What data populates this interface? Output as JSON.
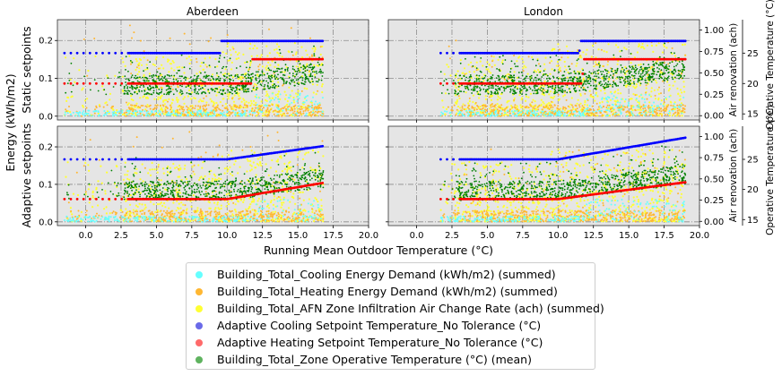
{
  "chart_data": {
    "type": "scatter",
    "panel_titles": [
      "Aberdeen",
      "London"
    ],
    "row_labels": [
      "Static setpoints",
      "Adaptive setpoints"
    ],
    "xlabel": "Running Mean Outdoor Temperature (°C)",
    "ylabel": "Energy (kWh/m2)",
    "right_ylabel_inner": "Air renovation (ach)",
    "right_ylabel_outer": "Operative Temperature (°C)",
    "xlim": [
      -2,
      20
    ],
    "xticks": [
      "0.0",
      "2.5",
      "5.0",
      "7.5",
      "10.0",
      "12.5",
      "15.0",
      "17.5",
      "20.0"
    ],
    "xtick_values": [
      0,
      2.5,
      5,
      7.5,
      10,
      12.5,
      15,
      17.5,
      20
    ],
    "ylim": [
      -0.01,
      0.255
    ],
    "yticks": [
      "0.0",
      "0.1",
      "0.2"
    ],
    "ytick_values": [
      0,
      0.1,
      0.2
    ],
    "ach_lim": [
      -0.05,
      1.12
    ],
    "ach_ticks": [
      "0.00",
      "0.25",
      "0.50",
      "0.75",
      "1.00"
    ],
    "ach_tick_values": [
      0,
      0.25,
      0.5,
      0.75,
      1.0
    ],
    "temp_lim": [
      14,
      30.5
    ],
    "temp_ticks": [
      "15",
      "20",
      "25"
    ],
    "temp_tick_values": [
      15,
      20,
      25
    ],
    "grid": true,
    "legend_position": "bottom",
    "x_range_by_city": {
      "Aberdeen": [
        -1.5,
        16.8
      ],
      "London": [
        1.7,
        19.0
      ]
    },
    "series": [
      {
        "name": "Building_Total_Cooling Energy Demand (kWh/m2) (summed)",
        "color": "#66ffff",
        "axis": "energy",
        "typical_range": [
          0,
          0.04
        ]
      },
      {
        "name": "Building_Total_Heating Energy Demand (kWh/m2) (summed)",
        "color": "#ffb732",
        "axis": "energy",
        "typical_range": [
          0,
          0.24
        ]
      },
      {
        "name": "Building_Total_AFN Zone Infiltration Air Change Rate (ach) (summed)",
        "color": "#ffff33",
        "axis": "ach",
        "typical_range": [
          0,
          0.8
        ]
      },
      {
        "name": "Adaptive Cooling Setpoint Temperature_No Tolerance (°C)",
        "color": "#0000ff",
        "axis": "temp",
        "static": {
          "Aberdeen": [
            [
              -1.5,
              25
            ],
            [
              9.5,
              25
            ],
            [
              9.6,
              27
            ],
            [
              16.8,
              27
            ]
          ],
          "London": [
            [
              1.7,
              25
            ],
            [
              11.5,
              25
            ],
            [
              11.6,
              27
            ],
            [
              19,
              27
            ]
          ]
        },
        "adaptive": {
          "Aberdeen": [
            [
              -1.5,
              25
            ],
            [
              10,
              25
            ],
            [
              16.8,
              27.2
            ]
          ],
          "London": [
            [
              1.7,
              25
            ],
            [
              10,
              25
            ],
            [
              19,
              28.6
            ]
          ]
        }
      },
      {
        "name": "Adaptive Heating Setpoint Temperature_No Tolerance (°C)",
        "color": "#ff0000",
        "axis": "temp",
        "static": {
          "Aberdeen": [
            [
              -1.5,
              20
            ],
            [
              11.7,
              20
            ],
            [
              11.8,
              24
            ],
            [
              16.8,
              24
            ]
          ],
          "London": [
            [
              1.7,
              20
            ],
            [
              11.7,
              20
            ],
            [
              11.8,
              24
            ],
            [
              19,
              24
            ]
          ]
        },
        "adaptive": {
          "Aberdeen": [
            [
              -1.5,
              18.4
            ],
            [
              10,
              18.4
            ],
            [
              16.8,
              21.1
            ]
          ],
          "London": [
            [
              1.7,
              18.4
            ],
            [
              10,
              18.4
            ],
            [
              19,
              21.2
            ]
          ]
        }
      },
      {
        "name": "Building_Total_Zone Operative Temperature (°C) (mean)",
        "color": "#008000",
        "axis": "temp",
        "typical_range": [
          18.5,
          26
        ]
      }
    ]
  }
}
